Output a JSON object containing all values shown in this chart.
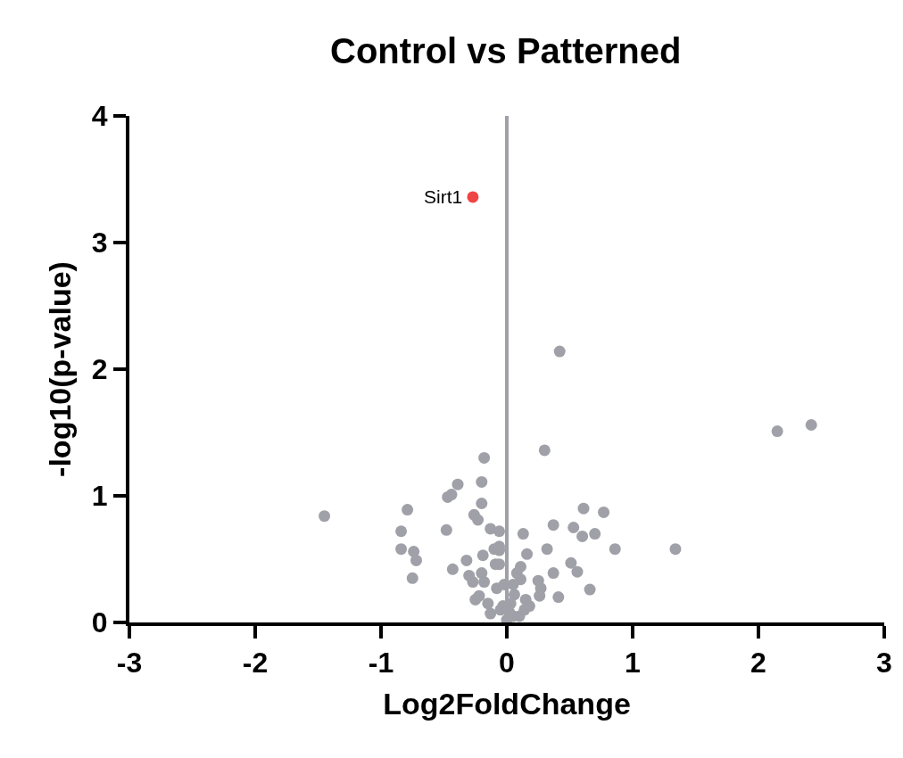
{
  "chart_data": {
    "type": "scatter",
    "title": "Control vs Patterned",
    "xlabel": "Log2FoldChange",
    "ylabel": "-log10(p-value)",
    "xlim": [
      -3,
      3
    ],
    "xticks": [
      -3,
      -2,
      -1,
      0,
      1,
      2,
      3
    ],
    "ylim": [
      0,
      4
    ],
    "yticks": [
      0,
      1,
      2,
      3,
      4
    ],
    "marker": "circle",
    "series": [
      {
        "color": "#a0a0a8",
        "x": [
          -1.45,
          -0.79,
          -0.84,
          -0.84,
          -0.74,
          -0.72,
          -0.75,
          -0.18,
          -0.39,
          -0.47,
          -0.44,
          -0.2,
          -0.2,
          -0.26,
          -0.23,
          -0.48,
          -0.13,
          -0.06,
          -0.19,
          -0.32,
          -0.43,
          -0.1,
          -0.06,
          -0.3,
          -0.27,
          -0.09,
          -0.2,
          -0.18,
          -0.22,
          -0.25,
          -0.15,
          -0.08,
          -0.13,
          0.3,
          0.61,
          0.77,
          0.37,
          0.53,
          0.6,
          0.7,
          0.86,
          1.34,
          0.13,
          0.32,
          0.16,
          0.51,
          0.56,
          0.37,
          0.66,
          0.41,
          0.25,
          0.27,
          0.26,
          0.11,
          0.08,
          0.11,
          0.18,
          0.15,
          0.06,
          0.02,
          -0.03,
          -0.06,
          -0.06,
          0.42,
          2.15,
          2.42,
          0.05,
          0.0,
          -0.05,
          0.1,
          0.14,
          0.03,
          -0.02,
          0.05
        ],
        "values": [
          0.84,
          0.89,
          0.72,
          0.58,
          0.56,
          0.49,
          0.35,
          1.3,
          1.09,
          0.99,
          1.01,
          1.11,
          0.94,
          0.85,
          0.81,
          0.73,
          0.74,
          0.72,
          0.53,
          0.49,
          0.42,
          0.58,
          0.6,
          0.37,
          0.32,
          0.46,
          0.39,
          0.32,
          0.21,
          0.18,
          0.15,
          0.27,
          0.07,
          1.36,
          0.9,
          0.87,
          0.77,
          0.75,
          0.68,
          0.7,
          0.58,
          0.58,
          0.7,
          0.58,
          0.54,
          0.47,
          0.4,
          0.39,
          0.26,
          0.2,
          0.33,
          0.27,
          0.21,
          0.44,
          0.39,
          0.34,
          0.13,
          0.18,
          0.22,
          0.08,
          0.13,
          0.57,
          0.46,
          2.14,
          1.51,
          1.56,
          0.05,
          0.02,
          0.1,
          0.05,
          0.1,
          0.15,
          0.3,
          0.3
        ]
      },
      {
        "color": "#ef4444",
        "x": [
          -0.27
        ],
        "values": [
          3.36
        ]
      }
    ],
    "ref_lines": [
      {
        "axis": "x",
        "value": 0,
        "color": "#a0a0a8"
      }
    ],
    "annotations": [
      {
        "text": "Sirt1",
        "x": -0.27,
        "y": 3.36
      }
    ]
  }
}
